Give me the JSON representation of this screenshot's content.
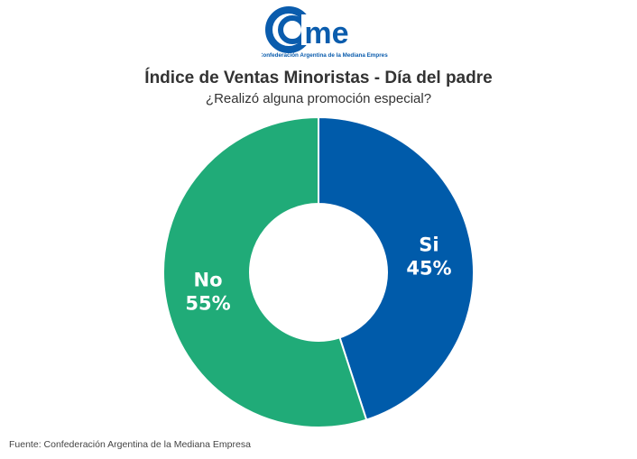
{
  "logo": {
    "text": "cme",
    "tagline": "Confederación Argentina de la Mediana Empresa",
    "color": "#0a5cad"
  },
  "chart_data": {
    "type": "pie",
    "donut": true,
    "title": "Índice de Ventas Minoristas - Día del padre",
    "subtitle": "¿Realizó alguna promoción especial?",
    "slices": [
      {
        "label": "Si",
        "value": 45,
        "display": "45%",
        "color": "#005baa"
      },
      {
        "label": "No",
        "value": 55,
        "display": "55%",
        "color": "#20ab78"
      }
    ]
  },
  "source": "Fuente: Confederación Argentina de la Mediana Empresa"
}
